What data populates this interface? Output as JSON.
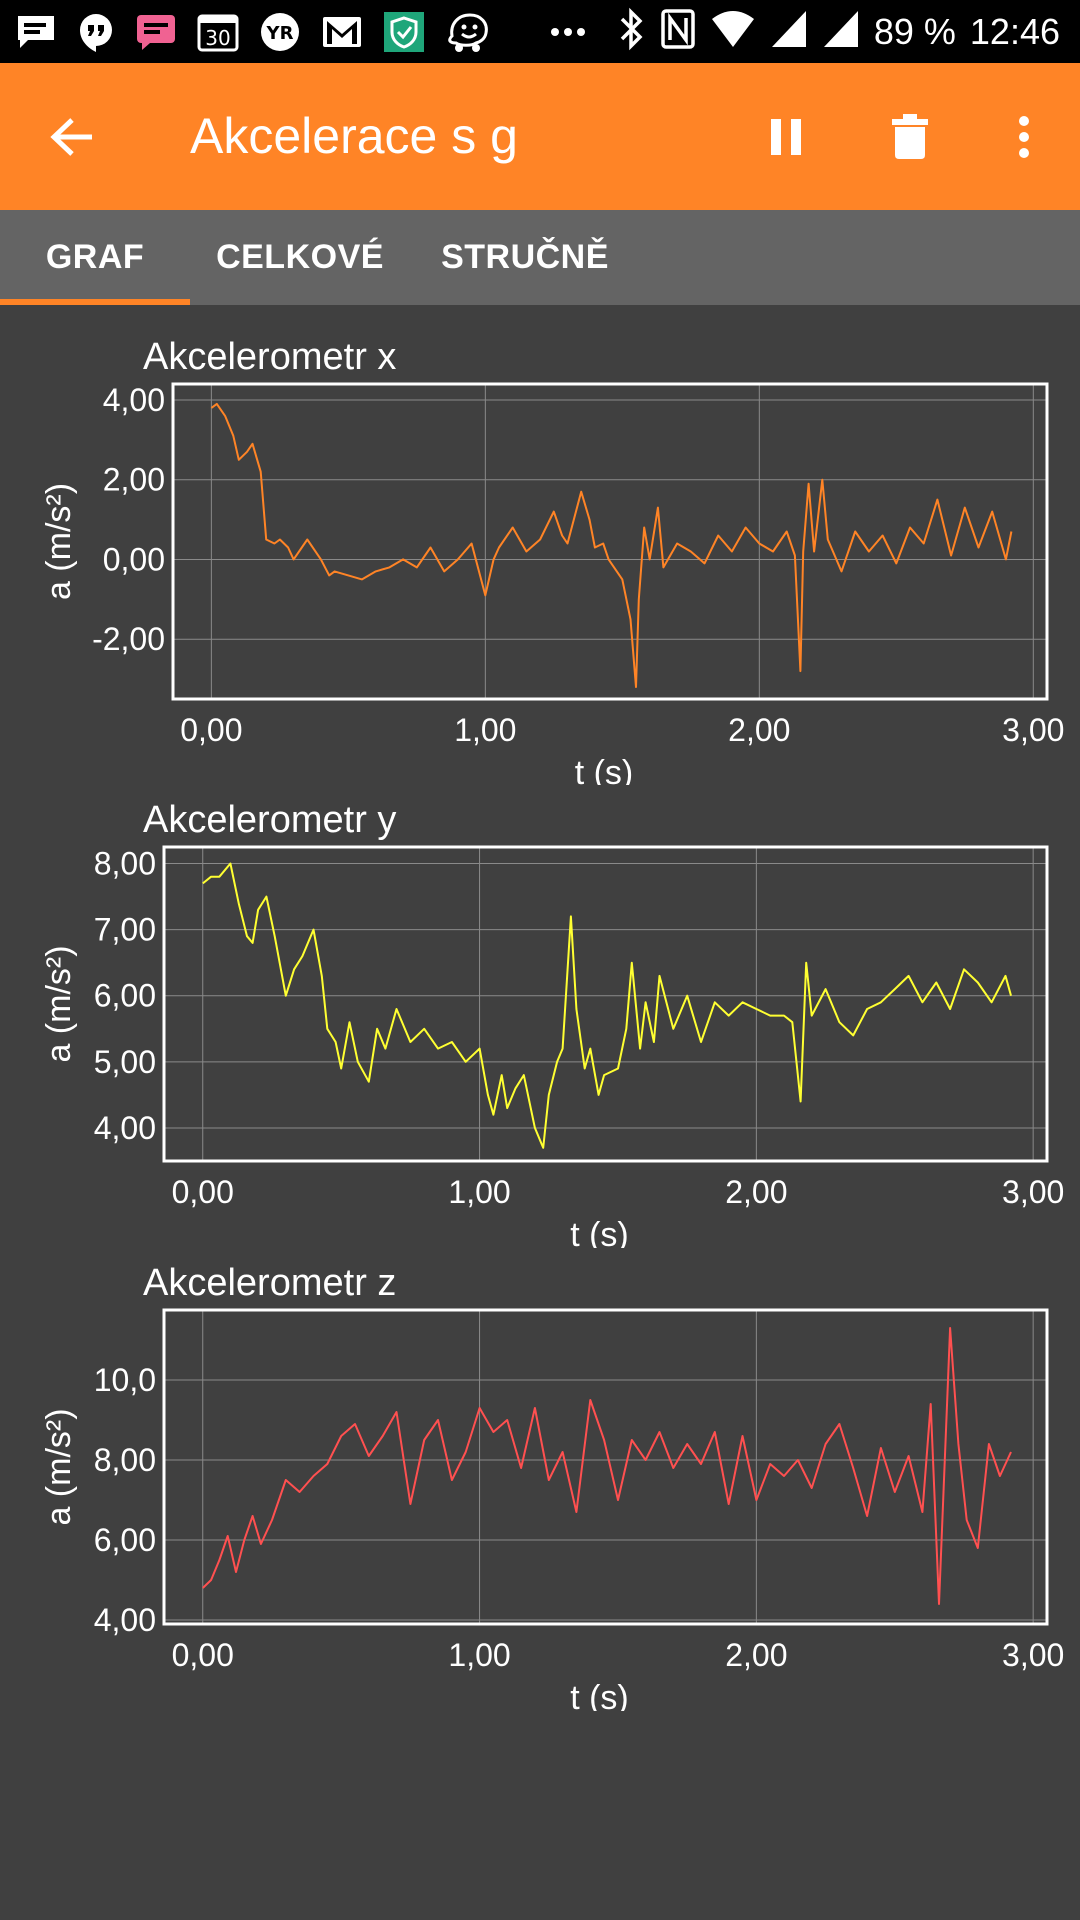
{
  "status_bar": {
    "battery": "89 %",
    "time": "12:46",
    "icons": [
      "message-icon",
      "hangouts-icon",
      "chat-icon",
      "calendar-icon",
      "yr-weather-icon",
      "gmail-icon",
      "shield-app-icon",
      "waze-icon",
      "more-notifications-icon",
      "bluetooth-icon",
      "nfc-icon",
      "wifi-icon",
      "signal-icon",
      "signal-icon-2"
    ],
    "calendar_day": "30",
    "yr_label": "YR"
  },
  "app_bar": {
    "title": "Akcelerace s g",
    "color": "#ff8426"
  },
  "tabs": [
    {
      "label": "GRAF",
      "active": true
    },
    {
      "label": "CELKOVÉ",
      "active": false
    },
    {
      "label": "STRUČNĚ",
      "active": false
    }
  ],
  "chart_data": [
    {
      "type": "line",
      "title": "Akcelerometr x",
      "xlabel": "t (s)",
      "ylabel": "a (m/s²)",
      "color": "#ff8426",
      "xlim": [
        -0.14,
        3.05
      ],
      "ylim": [
        -3.5,
        4.4
      ],
      "xticks": [
        0,
        1,
        2,
        3
      ],
      "xtick_labels": [
        "0,00",
        "1,00",
        "2,00",
        "3,00"
      ],
      "yticks": [
        4,
        2,
        0,
        -2
      ],
      "ytick_labels": [
        "4,00",
        "2,00",
        "0,00",
        "-2,00"
      ],
      "grid": true,
      "x": [
        0.0,
        0.02,
        0.05,
        0.08,
        0.1,
        0.13,
        0.15,
        0.18,
        0.2,
        0.23,
        0.25,
        0.28,
        0.3,
        0.35,
        0.4,
        0.43,
        0.45,
        0.5,
        0.55,
        0.6,
        0.65,
        0.7,
        0.75,
        0.8,
        0.85,
        0.9,
        0.95,
        1.0,
        1.03,
        1.05,
        1.1,
        1.15,
        1.2,
        1.25,
        1.28,
        1.3,
        1.35,
        1.38,
        1.4,
        1.43,
        1.45,
        1.5,
        1.53,
        1.55,
        1.56,
        1.58,
        1.6,
        1.63,
        1.65,
        1.7,
        1.75,
        1.8,
        1.85,
        1.9,
        1.95,
        2.0,
        2.05,
        2.1,
        2.13,
        2.15,
        2.16,
        2.18,
        2.2,
        2.23,
        2.25,
        2.3,
        2.35,
        2.4,
        2.45,
        2.5,
        2.55,
        2.6,
        2.65,
        2.7,
        2.75,
        2.8,
        2.85,
        2.9,
        2.92
      ],
      "y": [
        3.8,
        3.9,
        3.6,
        3.1,
        2.5,
        2.7,
        2.9,
        2.2,
        0.5,
        0.4,
        0.5,
        0.3,
        0.0,
        0.5,
        0.0,
        -0.4,
        -0.3,
        -0.4,
        -0.5,
        -0.3,
        -0.2,
        0.0,
        -0.2,
        0.3,
        -0.3,
        0.0,
        0.4,
        -0.9,
        0.0,
        0.3,
        0.8,
        0.2,
        0.5,
        1.2,
        0.6,
        0.4,
        1.7,
        1.0,
        0.3,
        0.4,
        0.0,
        -0.5,
        -1.5,
        -3.2,
        -1.0,
        0.8,
        0.0,
        1.3,
        -0.2,
        0.4,
        0.2,
        -0.1,
        0.6,
        0.2,
        0.8,
        0.4,
        0.2,
        0.7,
        0.1,
        -2.8,
        0.2,
        1.9,
        0.2,
        2.0,
        0.5,
        -0.3,
        0.7,
        0.2,
        0.6,
        -0.1,
        0.8,
        0.4,
        1.5,
        0.1,
        1.3,
        0.3,
        1.2,
        0.0,
        0.7
      ]
    },
    {
      "type": "line",
      "title": "Akcelerometr y",
      "xlabel": "t (s)",
      "ylabel": "a (m/s²)",
      "color": "#ffff32",
      "xlim": [
        -0.14,
        3.05
      ],
      "ylim": [
        3.5,
        8.25
      ],
      "xticks": [
        0,
        1,
        2,
        3
      ],
      "xtick_labels": [
        "0,00",
        "1,00",
        "2,00",
        "3,00"
      ],
      "yticks": [
        8,
        7,
        6,
        5,
        4
      ],
      "ytick_labels": [
        "8,00",
        "7,00",
        "6,00",
        "5,00",
        "4,00"
      ],
      "grid": true,
      "x": [
        0.0,
        0.03,
        0.06,
        0.1,
        0.13,
        0.16,
        0.18,
        0.2,
        0.23,
        0.26,
        0.3,
        0.33,
        0.36,
        0.4,
        0.43,
        0.45,
        0.48,
        0.5,
        0.53,
        0.56,
        0.6,
        0.63,
        0.66,
        0.7,
        0.75,
        0.8,
        0.85,
        0.9,
        0.95,
        1.0,
        1.03,
        1.05,
        1.08,
        1.1,
        1.13,
        1.16,
        1.2,
        1.23,
        1.25,
        1.28,
        1.3,
        1.33,
        1.35,
        1.38,
        1.4,
        1.43,
        1.45,
        1.5,
        1.53,
        1.55,
        1.58,
        1.6,
        1.63,
        1.65,
        1.7,
        1.75,
        1.8,
        1.85,
        1.9,
        1.95,
        2.0,
        2.05,
        2.1,
        2.13,
        2.16,
        2.18,
        2.2,
        2.25,
        2.3,
        2.35,
        2.4,
        2.45,
        2.5,
        2.55,
        2.6,
        2.65,
        2.7,
        2.75,
        2.8,
        2.85,
        2.9,
        2.92
      ],
      "y": [
        7.7,
        7.8,
        7.8,
        8.0,
        7.4,
        6.9,
        6.8,
        7.3,
        7.5,
        6.9,
        6.0,
        6.4,
        6.6,
        7.0,
        6.3,
        5.5,
        5.3,
        4.9,
        5.6,
        5.0,
        4.7,
        5.5,
        5.2,
        5.8,
        5.3,
        5.5,
        5.2,
        5.3,
        5.0,
        5.2,
        4.5,
        4.2,
        4.8,
        4.3,
        4.6,
        4.8,
        4.0,
        3.7,
        4.5,
        5.0,
        5.2,
        7.2,
        5.8,
        4.9,
        5.2,
        4.5,
        4.8,
        4.9,
        5.5,
        6.5,
        5.2,
        5.9,
        5.3,
        6.3,
        5.5,
        6.0,
        5.3,
        5.9,
        5.7,
        5.9,
        5.8,
        5.7,
        5.7,
        5.6,
        4.4,
        6.5,
        5.7,
        6.1,
        5.6,
        5.4,
        5.8,
        5.9,
        6.1,
        6.3,
        5.9,
        6.2,
        5.8,
        6.4,
        6.2,
        5.9,
        6.3,
        6.0
      ]
    },
    {
      "type": "line",
      "title": "Akcelerometr z",
      "xlabel": "t (s)",
      "ylabel": "a (m/s²)",
      "color": "#ff5050",
      "xlim": [
        -0.14,
        3.05
      ],
      "ylim": [
        3.9,
        11.75
      ],
      "xticks": [
        0,
        1,
        2,
        3
      ],
      "xtick_labels": [
        "0,00",
        "1,00",
        "2,00",
        "3,00"
      ],
      "yticks": [
        10,
        8,
        6,
        4
      ],
      "ytick_labels": [
        "10,0",
        "8,00",
        "6,00",
        "4,00"
      ],
      "grid": true,
      "x": [
        0.0,
        0.03,
        0.06,
        0.09,
        0.12,
        0.15,
        0.18,
        0.21,
        0.25,
        0.3,
        0.35,
        0.4,
        0.45,
        0.5,
        0.55,
        0.6,
        0.65,
        0.7,
        0.75,
        0.8,
        0.85,
        0.9,
        0.95,
        1.0,
        1.05,
        1.1,
        1.15,
        1.2,
        1.25,
        1.3,
        1.35,
        1.4,
        1.45,
        1.5,
        1.55,
        1.6,
        1.65,
        1.7,
        1.75,
        1.8,
        1.85,
        1.9,
        1.95,
        2.0,
        2.05,
        2.1,
        2.15,
        2.2,
        2.25,
        2.3,
        2.35,
        2.4,
        2.45,
        2.5,
        2.55,
        2.6,
        2.63,
        2.66,
        2.7,
        2.73,
        2.76,
        2.8,
        2.84,
        2.88,
        2.92
      ],
      "y": [
        4.8,
        5.0,
        5.5,
        6.1,
        5.2,
        6.0,
        6.6,
        5.9,
        6.5,
        7.5,
        7.2,
        7.6,
        7.9,
        8.6,
        8.9,
        8.1,
        8.6,
        9.2,
        6.9,
        8.5,
        9.0,
        7.5,
        8.2,
        9.3,
        8.7,
        9.0,
        7.8,
        9.3,
        7.5,
        8.2,
        6.7,
        9.5,
        8.5,
        7.0,
        8.5,
        8.0,
        8.7,
        7.8,
        8.4,
        7.9,
        8.7,
        6.9,
        8.6,
        7.0,
        7.9,
        7.6,
        8.0,
        7.3,
        8.4,
        8.9,
        7.8,
        6.6,
        8.3,
        7.2,
        8.1,
        6.7,
        9.4,
        4.4,
        11.3,
        8.4,
        6.5,
        5.8,
        8.4,
        7.6,
        8.2
      ]
    }
  ]
}
